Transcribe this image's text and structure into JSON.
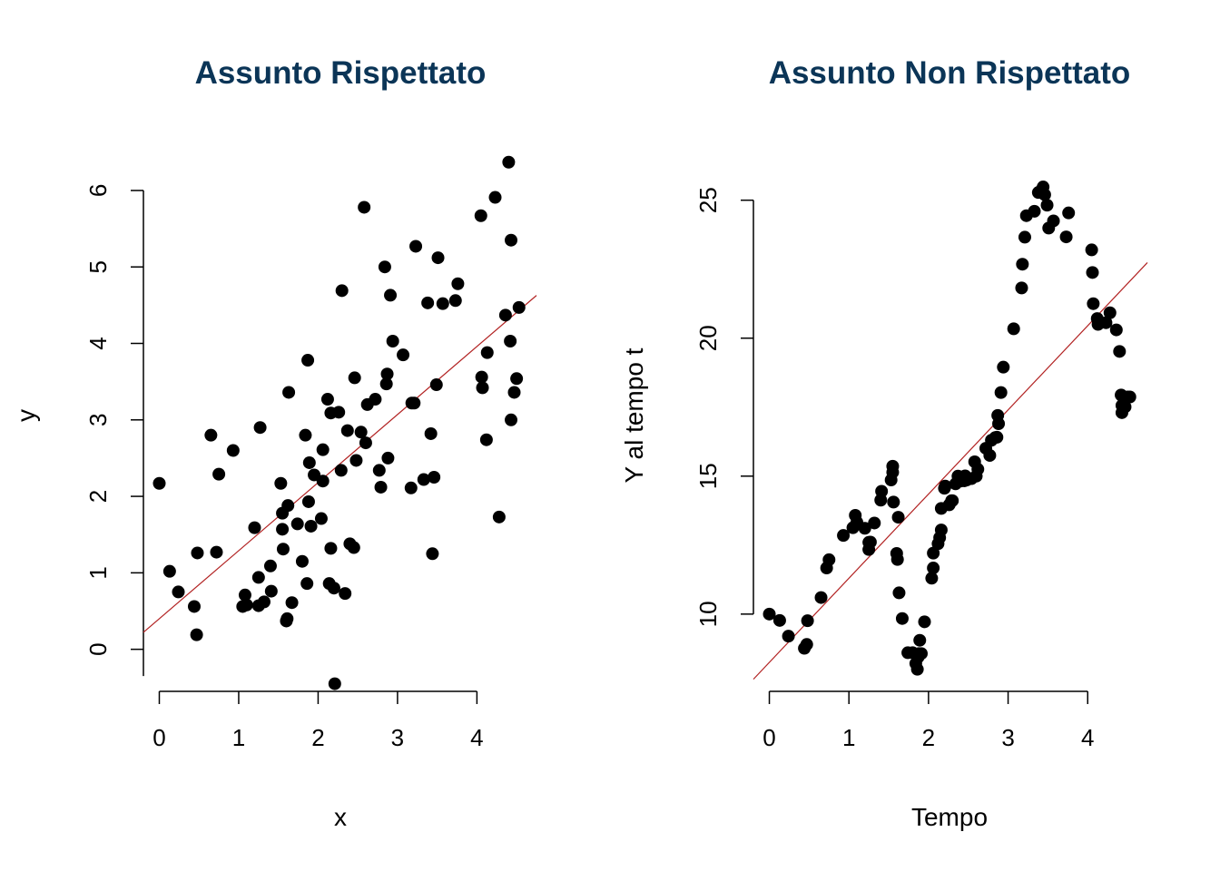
{
  "colors": {
    "title": "#0b3557",
    "points": "#000000",
    "fit_line": "#b22222",
    "axes": "#000000"
  },
  "chart_data": [
    {
      "type": "scatter",
      "title": "Assunto Rispettato",
      "xlabel": "x",
      "ylabel": "y",
      "xticks": [
        0,
        1,
        2,
        3,
        4
      ],
      "yticks": [
        0,
        1,
        2,
        3,
        4,
        5,
        6
      ],
      "xlim": [
        -0.2,
        4.75
      ],
      "ylim": [
        -0.55,
        6.45
      ],
      "grid": false,
      "fit_line": {
        "intercept": 0.4,
        "slope": 0.89
      },
      "points": [
        [
          0.0,
          2.17
        ],
        [
          0.13,
          1.02
        ],
        [
          0.24,
          0.75
        ],
        [
          0.44,
          0.56
        ],
        [
          0.47,
          0.19
        ],
        [
          0.48,
          1.26
        ],
        [
          0.65,
          2.8
        ],
        [
          0.72,
          1.27
        ],
        [
          0.75,
          2.29
        ],
        [
          0.93,
          2.6
        ],
        [
          1.05,
          0.56
        ],
        [
          1.08,
          0.71
        ],
        [
          1.1,
          0.58
        ],
        [
          1.2,
          1.59
        ],
        [
          1.25,
          0.94
        ],
        [
          1.25,
          0.57
        ],
        [
          1.27,
          2.9
        ],
        [
          1.32,
          0.62
        ],
        [
          1.4,
          1.09
        ],
        [
          1.41,
          0.76
        ],
        [
          1.53,
          2.17
        ],
        [
          1.55,
          1.57
        ],
        [
          1.55,
          1.78
        ],
        [
          1.56,
          1.31
        ],
        [
          1.6,
          0.37
        ],
        [
          1.61,
          0.4
        ],
        [
          1.62,
          1.88
        ],
        [
          1.63,
          3.36
        ],
        [
          1.67,
          0.61
        ],
        [
          1.74,
          1.64
        ],
        [
          1.8,
          1.15
        ],
        [
          1.84,
          2.8
        ],
        [
          1.86,
          0.86
        ],
        [
          1.87,
          3.78
        ],
        [
          1.88,
          1.93
        ],
        [
          1.89,
          2.44
        ],
        [
          1.91,
          1.61
        ],
        [
          1.95,
          2.28
        ],
        [
          2.04,
          1.71
        ],
        [
          2.06,
          2.2
        ],
        [
          2.06,
          2.61
        ],
        [
          2.12,
          3.27
        ],
        [
          2.14,
          0.86
        ],
        [
          2.16,
          1.32
        ],
        [
          2.16,
          3.09
        ],
        [
          2.2,
          0.8
        ],
        [
          2.21,
          -0.45
        ],
        [
          2.26,
          3.1
        ],
        [
          2.29,
          2.34
        ],
        [
          2.3,
          4.69
        ],
        [
          2.34,
          0.73
        ],
        [
          2.37,
          2.86
        ],
        [
          2.4,
          1.38
        ],
        [
          2.45,
          1.33
        ],
        [
          2.46,
          3.55
        ],
        [
          2.48,
          2.47
        ],
        [
          2.54,
          2.84
        ],
        [
          2.58,
          5.78
        ],
        [
          2.6,
          2.7
        ],
        [
          2.62,
          3.2
        ],
        [
          2.72,
          3.27
        ],
        [
          2.77,
          2.34
        ],
        [
          2.79,
          2.12
        ],
        [
          2.84,
          5.0
        ],
        [
          2.86,
          3.47
        ],
        [
          2.87,
          3.6
        ],
        [
          2.88,
          2.5
        ],
        [
          2.91,
          4.63
        ],
        [
          2.94,
          4.03
        ],
        [
          3.07,
          3.85
        ],
        [
          3.17,
          2.11
        ],
        [
          3.18,
          3.22
        ],
        [
          3.21,
          3.22
        ],
        [
          3.23,
          5.27
        ],
        [
          3.33,
          2.22
        ],
        [
          3.38,
          4.53
        ],
        [
          3.42,
          2.82
        ],
        [
          3.44,
          1.25
        ],
        [
          3.46,
          2.25
        ],
        [
          3.49,
          3.46
        ],
        [
          3.51,
          5.12
        ],
        [
          3.57,
          4.52
        ],
        [
          3.73,
          4.56
        ],
        [
          3.76,
          4.78
        ],
        [
          4.05,
          5.67
        ],
        [
          4.06,
          3.56
        ],
        [
          4.07,
          3.42
        ],
        [
          4.12,
          2.74
        ],
        [
          4.13,
          3.88
        ],
        [
          4.23,
          5.91
        ],
        [
          4.28,
          1.73
        ],
        [
          4.36,
          4.37
        ],
        [
          4.4,
          6.37
        ],
        [
          4.42,
          4.03
        ],
        [
          4.43,
          5.35
        ],
        [
          4.43,
          3.0
        ],
        [
          4.47,
          3.36
        ],
        [
          4.5,
          3.54
        ],
        [
          4.53,
          4.47
        ]
      ]
    },
    {
      "type": "scatter",
      "title": "Assunto Non Rispettato",
      "xlabel": "Tempo",
      "ylabel": "Y al tempo t",
      "xticks": [
        0,
        1,
        2,
        3,
        4
      ],
      "yticks": [
        10,
        15,
        20,
        25
      ],
      "xlim": [
        -0.2,
        4.75
      ],
      "ylim": [
        7.2,
        26.6
      ],
      "grid": false,
      "fit_line": {
        "intercept": 8.25,
        "slope": 3.05
      },
      "points": [
        [
          0.0,
          10.0
        ],
        [
          0.13,
          9.77
        ],
        [
          0.24,
          9.2
        ],
        [
          0.44,
          8.76
        ],
        [
          0.47,
          8.9
        ],
        [
          0.48,
          9.76
        ],
        [
          0.65,
          10.6
        ],
        [
          0.72,
          11.67
        ],
        [
          0.75,
          11.97
        ],
        [
          0.93,
          12.85
        ],
        [
          1.05,
          13.13
        ],
        [
          1.08,
          13.58
        ],
        [
          1.1,
          13.33
        ],
        [
          1.2,
          13.11
        ],
        [
          1.25,
          12.6
        ],
        [
          1.25,
          12.34
        ],
        [
          1.27,
          12.61
        ],
        [
          1.32,
          13.3
        ],
        [
          1.4,
          14.13
        ],
        [
          1.41,
          14.45
        ],
        [
          1.53,
          14.86
        ],
        [
          1.55,
          15.36
        ],
        [
          1.55,
          15.14
        ],
        [
          1.56,
          14.06
        ],
        [
          1.6,
          12.2
        ],
        [
          1.61,
          11.98
        ],
        [
          1.62,
          13.51
        ],
        [
          1.63,
          10.77
        ],
        [
          1.67,
          9.84
        ],
        [
          1.74,
          8.6
        ],
        [
          1.8,
          8.6
        ],
        [
          1.84,
          8.21
        ],
        [
          1.86,
          8.0
        ],
        [
          1.87,
          8.44
        ],
        [
          1.88,
          8.57
        ],
        [
          1.89,
          9.05
        ],
        [
          1.91,
          8.57
        ],
        [
          1.95,
          9.72
        ],
        [
          2.04,
          11.3
        ],
        [
          2.06,
          11.67
        ],
        [
          2.06,
          12.21
        ],
        [
          2.12,
          12.55
        ],
        [
          2.14,
          12.77
        ],
        [
          2.16,
          13.05
        ],
        [
          2.16,
          13.83
        ],
        [
          2.2,
          14.56
        ],
        [
          2.21,
          14.64
        ],
        [
          2.26,
          13.96
        ],
        [
          2.29,
          14.11
        ],
        [
          2.3,
          14.11
        ],
        [
          2.34,
          14.72
        ],
        [
          2.37,
          15.0
        ],
        [
          2.4,
          14.82
        ],
        [
          2.45,
          14.83
        ],
        [
          2.46,
          15.01
        ],
        [
          2.48,
          14.86
        ],
        [
          2.54,
          14.91
        ],
        [
          2.58,
          15.52
        ],
        [
          2.6,
          15.0
        ],
        [
          2.62,
          15.25
        ],
        [
          2.72,
          16.01
        ],
        [
          2.77,
          15.75
        ],
        [
          2.79,
          16.3
        ],
        [
          2.84,
          16.4
        ],
        [
          2.86,
          16.41
        ],
        [
          2.87,
          17.2
        ],
        [
          2.88,
          16.9
        ],
        [
          2.91,
          18.03
        ],
        [
          2.94,
          18.95
        ],
        [
          3.07,
          20.34
        ],
        [
          3.17,
          21.82
        ],
        [
          3.18,
          22.68
        ],
        [
          3.21,
          23.66
        ],
        [
          3.23,
          24.44
        ],
        [
          3.33,
          24.6
        ],
        [
          3.38,
          25.28
        ],
        [
          3.42,
          25.37
        ],
        [
          3.44,
          25.48
        ],
        [
          3.46,
          25.2
        ],
        [
          3.49,
          24.82
        ],
        [
          3.51,
          23.99
        ],
        [
          3.57,
          24.25
        ],
        [
          3.73,
          23.67
        ],
        [
          3.76,
          24.54
        ],
        [
          4.05,
          23.2
        ],
        [
          4.06,
          22.38
        ],
        [
          4.07,
          21.25
        ],
        [
          4.12,
          20.71
        ],
        [
          4.13,
          20.5
        ],
        [
          4.23,
          20.56
        ],
        [
          4.28,
          20.92
        ],
        [
          4.36,
          20.3
        ],
        [
          4.4,
          19.52
        ],
        [
          4.42,
          17.94
        ],
        [
          4.43,
          17.56
        ],
        [
          4.43,
          17.3
        ],
        [
          4.47,
          17.51
        ],
        [
          4.5,
          17.87
        ],
        [
          4.53,
          17.87
        ]
      ]
    }
  ]
}
